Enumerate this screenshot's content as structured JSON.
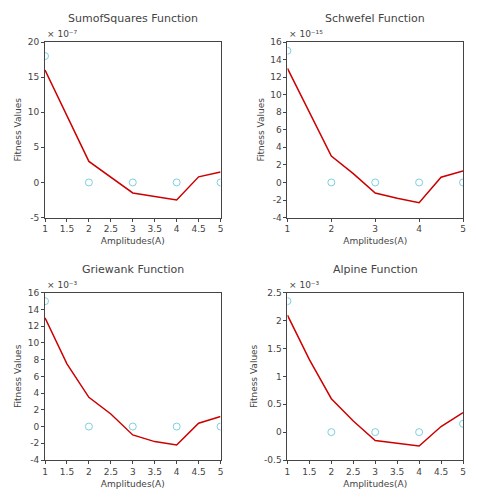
{
  "chart_data": [
    {
      "type": "line",
      "title": "SumofSquares Function",
      "xlabel": "Amplitudes(A)",
      "ylabel": "Fitness Values",
      "annotations": [
        {
          "text": "× 10⁻⁷"
        }
      ],
      "series": [
        {
          "type": "line",
          "color": "#cc0000",
          "line_style": "solid",
          "x": [
            1,
            2,
            3,
            3.5,
            4,
            4.5,
            5
          ],
          "values": [
            16,
            3,
            -1.5,
            -2.0,
            -2.5,
            0.8,
            1.5
          ]
        },
        {
          "type": "scatter",
          "color": "#7ecfdf",
          "marker": "open circle",
          "x": [
            1,
            2,
            3,
            4,
            5
          ],
          "values": [
            18,
            0,
            0,
            0,
            0
          ]
        }
      ],
      "xlim": [
        1,
        5
      ],
      "xticks": [
        1,
        1.5,
        2,
        2.5,
        3,
        3.5,
        4,
        4.5,
        5
      ],
      "ylim": [
        -5,
        20
      ],
      "yticks": [
        -5,
        0,
        5,
        10,
        15,
        20
      ],
      "grid": false
    },
    {
      "type": "line",
      "title": "Schwefel Function",
      "xlabel": "Amplitudes(A)",
      "ylabel": "Fitness Values",
      "annotations": [
        {
          "text": "× 10⁻¹⁵"
        }
      ],
      "series": [
        {
          "type": "line",
          "color": "#cc0000",
          "line_style": "solid",
          "x": [
            1,
            2,
            2.5,
            3,
            3.5,
            4,
            4.5,
            5
          ],
          "values": [
            13,
            3,
            1.0,
            -1.2,
            -1.8,
            -2.3,
            0.6,
            1.3
          ]
        },
        {
          "type": "scatter",
          "color": "#7ecfdf",
          "marker": "open circle",
          "x": [
            1,
            2,
            3,
            4,
            5
          ],
          "values": [
            15,
            0,
            0,
            0,
            0
          ]
        }
      ],
      "xlim": [
        1,
        5
      ],
      "xticks": [
        1,
        2,
        3,
        4,
        5
      ],
      "ylim": [
        -4,
        16
      ],
      "yticks": [
        -4,
        -2,
        0,
        2,
        4,
        6,
        8,
        10,
        12,
        14,
        16
      ],
      "grid": false
    },
    {
      "type": "line",
      "title": "Griewank Function",
      "xlabel": "Amplitudes(A)",
      "ylabel": "Fitness Values",
      "annotations": [
        {
          "text": "× 10⁻³"
        }
      ],
      "series": [
        {
          "type": "line",
          "color": "#cc0000",
          "line_style": "solid",
          "x": [
            1,
            1.5,
            2,
            2.5,
            3,
            3.5,
            4,
            4.5,
            5
          ],
          "values": [
            13,
            7.5,
            3.5,
            1.5,
            -1.0,
            -1.8,
            -2.2,
            0.4,
            1.2
          ]
        },
        {
          "type": "scatter",
          "color": "#7ecfdf",
          "marker": "open circle",
          "x": [
            1,
            2,
            3,
            4,
            5
          ],
          "values": [
            15,
            0,
            0,
            0,
            0
          ]
        }
      ],
      "xlim": [
        1,
        5
      ],
      "xticks": [
        1,
        1.5,
        2,
        2.5,
        3,
        3.5,
        4,
        4.5,
        5
      ],
      "ylim": [
        -4,
        16
      ],
      "yticks": [
        -4,
        -2,
        0,
        2,
        4,
        6,
        8,
        10,
        12,
        14,
        16
      ],
      "grid": false
    },
    {
      "type": "line",
      "title": "Alpine Function",
      "xlabel": "Amplitudes(A)",
      "ylabel": "Fitness Values",
      "annotations": [
        {
          "text": "× 10⁻³"
        }
      ],
      "series": [
        {
          "type": "line",
          "color": "#cc0000",
          "line_style": "solid",
          "x": [
            1,
            1.5,
            2,
            2.5,
            3,
            3.5,
            4,
            4.5,
            5
          ],
          "values": [
            2.1,
            1.3,
            0.6,
            0.2,
            -0.15,
            -0.2,
            -0.25,
            0.1,
            0.35
          ]
        },
        {
          "type": "scatter",
          "color": "#7ecfdf",
          "marker": "open circle",
          "x": [
            1,
            2,
            3,
            4,
            5
          ],
          "values": [
            2.35,
            0,
            0,
            0,
            0.15
          ]
        }
      ],
      "xlim": [
        1,
        5
      ],
      "xticks": [
        1,
        1.5,
        2,
        2.5,
        3,
        3.5,
        4,
        4.5,
        5
      ],
      "ylim": [
        -0.5,
        2.5
      ],
      "yticks": [
        -0.5,
        0,
        0.5,
        1.0,
        1.5,
        2.0,
        2.5
      ],
      "grid": false
    }
  ]
}
